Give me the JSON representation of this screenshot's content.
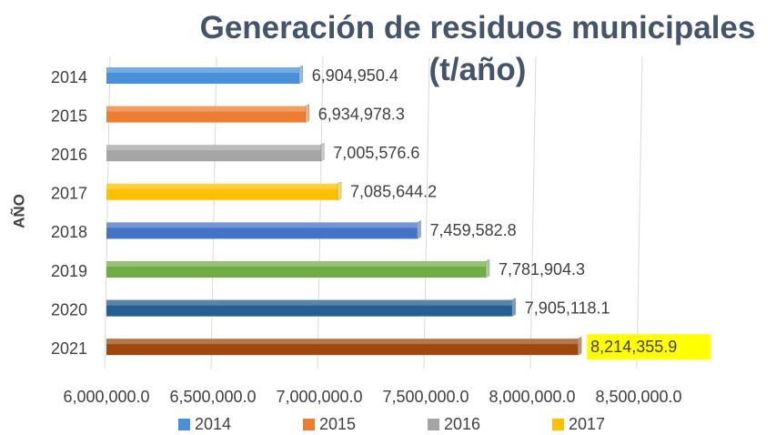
{
  "chart_data": {
    "type": "bar",
    "orientation": "horizontal",
    "title": "Generación de residuos municipales (t/año)",
    "y_label": "AÑO",
    "categories": [
      "2014",
      "2015",
      "2016",
      "2017",
      "2018",
      "2019",
      "2020",
      "2021"
    ],
    "values": [
      6904950.4,
      6934978.3,
      7005576.6,
      7085644.2,
      7459582.8,
      7781904.3,
      7905118.1,
      8214355.9
    ],
    "value_labels": [
      "6,904,950.4",
      "6,934,978.3",
      "7,005,576.6",
      "7,085,644.2",
      "7,459,582.8",
      "7,781,904.3",
      "7,905,118.1",
      "8,214,355.9"
    ],
    "colors": [
      "#4a90d9",
      "#ed7d31",
      "#a5a5a5",
      "#ffc000",
      "#4472c4",
      "#70ad47",
      "#255e91",
      "#9e480e"
    ],
    "highlight": {
      "index": 7,
      "color": "#ffff00"
    },
    "xlim": [
      6000000,
      8500000
    ],
    "xticks": [
      {
        "value": 6000000,
        "label": "6,000,000.0"
      },
      {
        "value": 6500000,
        "label": "6,500,000.0"
      },
      {
        "value": 7000000,
        "label": "7,000,000.0"
      },
      {
        "value": 7500000,
        "label": "7,500,000.0"
      },
      {
        "value": 8000000,
        "label": "8,000,000.0"
      },
      {
        "value": 8500000,
        "label": "8,500,000.0"
      }
    ],
    "grid": true,
    "legend": [
      "2014",
      "2015",
      "2016",
      "2017"
    ],
    "legend_position": "bottom"
  }
}
